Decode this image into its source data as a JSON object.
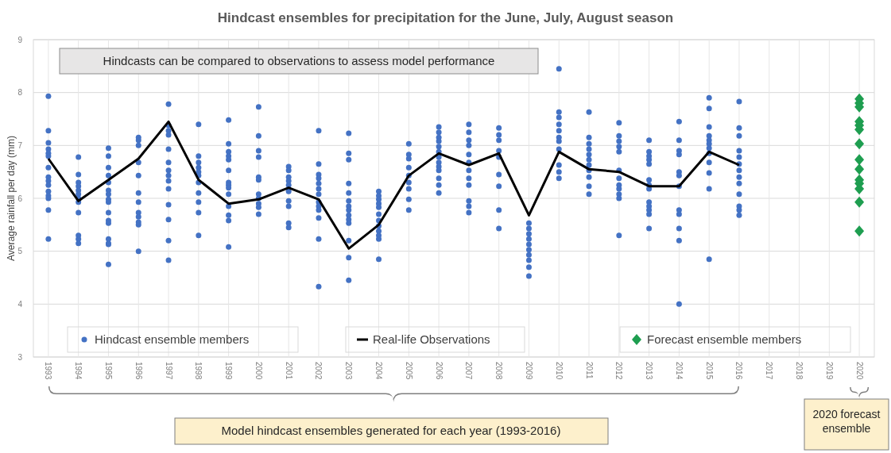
{
  "chart_data": {
    "type": "scatter",
    "title": "Hindcast ensembles for precipitation for the June, July, August season",
    "ylabel": "Average rainfall per day (mm)",
    "xlim": [
      1992.5,
      2020.5
    ],
    "xticks": [
      1993,
      1994,
      1995,
      1996,
      1997,
      1998,
      1999,
      2000,
      2001,
      2002,
      2003,
      2004,
      2005,
      2006,
      2007,
      2008,
      2009,
      2010,
      2011,
      2012,
      2013,
      2014,
      2015,
      2016,
      2017,
      2018,
      2019,
      2020
    ],
    "ylim": [
      3,
      9
    ],
    "yticks": [
      3,
      4,
      5,
      6,
      7,
      8,
      9
    ],
    "grid": true,
    "legend": "bottom",
    "annotations": [
      "Hindcasts can be compared to observations to assess model performance",
      "Model hindcast ensembles generated for each year (1993-2016)",
      "2020 forecast ensemble"
    ],
    "series": [
      {
        "name": "Hindcast ensemble members",
        "marker": "circle",
        "color": "#4472c4",
        "x": [
          1993,
          1993,
          1993,
          1993,
          1993,
          1993,
          1993,
          1993,
          1993,
          1993,
          1993,
          1993,
          1993,
          1993,
          1993,
          1994,
          1994,
          1994,
          1994,
          1994,
          1994,
          1994,
          1994,
          1994,
          1994,
          1994,
          1994,
          1995,
          1995,
          1995,
          1995,
          1995,
          1995,
          1995,
          1995,
          1995,
          1995,
          1995,
          1995,
          1995,
          1995,
          1995,
          1995,
          1996,
          1996,
          1996,
          1996,
          1996,
          1996,
          1996,
          1996,
          1996,
          1996,
          1996,
          1996,
          1997,
          1997,
          1997,
          1997,
          1997,
          1997,
          1997,
          1997,
          1997,
          1997,
          1997,
          1997,
          1997,
          1997,
          1998,
          1998,
          1998,
          1998,
          1998,
          1998,
          1998,
          1998,
          1998,
          1998,
          1998,
          1999,
          1999,
          1999,
          1999,
          1999,
          1999,
          1999,
          1999,
          1999,
          1999,
          1999,
          1999,
          1999,
          1999,
          2000,
          2000,
          2000,
          2000,
          2000,
          2000,
          2000,
          2000,
          2000,
          2000,
          2000,
          2001,
          2001,
          2001,
          2001,
          2001,
          2001,
          2001,
          2001,
          2001,
          2001,
          2002,
          2002,
          2002,
          2002,
          2002,
          2002,
          2002,
          2002,
          2002,
          2002,
          2002,
          2002,
          2002,
          2003,
          2003,
          2003,
          2003,
          2003,
          2003,
          2003,
          2003,
          2003,
          2003,
          2003,
          2003,
          2003,
          2003,
          2004,
          2004,
          2004,
          2004,
          2004,
          2004,
          2004,
          2004,
          2004,
          2004,
          2004,
          2004,
          2005,
          2005,
          2005,
          2005,
          2005,
          2005,
          2005,
          2005,
          2005,
          2006,
          2006,
          2006,
          2006,
          2006,
          2006,
          2006,
          2006,
          2006,
          2006,
          2006,
          2006,
          2006,
          2007,
          2007,
          2007,
          2007,
          2007,
          2007,
          2007,
          2007,
          2007,
          2007,
          2007,
          2007,
          2008,
          2008,
          2008,
          2008,
          2008,
          2008,
          2008,
          2008,
          2008,
          2009,
          2009,
          2009,
          2009,
          2009,
          2009,
          2009,
          2009,
          2009,
          2009,
          2010,
          2010,
          2010,
          2010,
          2010,
          2010,
          2010,
          2010,
          2010,
          2010,
          2010,
          2011,
          2011,
          2011,
          2011,
          2011,
          2011,
          2011,
          2011,
          2011,
          2011,
          2011,
          2012,
          2012,
          2012,
          2012,
          2012,
          2012,
          2012,
          2012,
          2012,
          2012,
          2012,
          2012,
          2013,
          2013,
          2013,
          2013,
          2013,
          2013,
          2013,
          2013,
          2013,
          2013,
          2013,
          2013,
          2013,
          2014,
          2014,
          2014,
          2014,
          2014,
          2014,
          2014,
          2014,
          2014,
          2014,
          2014,
          2014,
          2015,
          2015,
          2015,
          2015,
          2015,
          2015,
          2015,
          2015,
          2015,
          2015,
          2015,
          2015,
          2016,
          2016,
          2016,
          2016,
          2016,
          2016,
          2016,
          2016,
          2016,
          2016,
          2016,
          2016,
          2016
        ],
        "values": [
          7.93,
          7.28,
          7.05,
          6.93,
          6.85,
          6.8,
          6.58,
          6.4,
          6.33,
          6.25,
          6.13,
          6.05,
          6.0,
          5.78,
          5.23,
          6.78,
          6.45,
          6.3,
          6.23,
          6.15,
          6.08,
          6.0,
          5.93,
          5.73,
          5.3,
          5.23,
          5.15,
          6.95,
          6.8,
          6.58,
          6.43,
          6.3,
          6.15,
          6.08,
          5.98,
          5.93,
          5.73,
          5.58,
          5.53,
          5.23,
          5.15,
          5.13,
          4.75,
          7.15,
          7.1,
          7.0,
          6.68,
          6.43,
          6.1,
          5.93,
          5.73,
          5.65,
          5.55,
          5.5,
          5.0,
          7.78,
          7.38,
          7.28,
          7.2,
          6.93,
          6.68,
          6.53,
          6.43,
          6.33,
          6.18,
          5.88,
          5.6,
          5.2,
          4.83,
          7.4,
          6.8,
          6.68,
          6.58,
          6.5,
          6.43,
          6.3,
          6.1,
          5.93,
          5.73,
          5.3,
          7.48,
          7.03,
          6.88,
          6.8,
          6.73,
          6.53,
          6.3,
          6.25,
          6.2,
          6.08,
          5.85,
          5.68,
          5.58,
          5.08,
          7.73,
          7.18,
          6.9,
          6.78,
          6.4,
          6.35,
          6.08,
          6.0,
          5.9,
          5.83,
          5.7,
          6.6,
          6.53,
          6.4,
          6.33,
          6.25,
          6.13,
          5.95,
          5.85,
          5.53,
          5.45,
          7.28,
          6.65,
          6.45,
          6.38,
          6.28,
          6.18,
          6.08,
          5.93,
          5.85,
          5.78,
          5.63,
          5.23,
          4.33,
          7.23,
          6.85,
          6.73,
          6.28,
          6.1,
          5.95,
          5.85,
          5.78,
          5.68,
          5.6,
          5.53,
          5.2,
          4.88,
          4.45,
          6.13,
          6.05,
          5.98,
          5.9,
          5.83,
          5.7,
          5.58,
          5.48,
          5.38,
          5.3,
          5.23,
          4.85,
          7.03,
          6.83,
          6.75,
          6.58,
          6.43,
          6.3,
          6.18,
          5.98,
          5.78,
          7.35,
          7.25,
          7.15,
          7.08,
          6.98,
          6.88,
          6.78,
          6.68,
          6.6,
          6.53,
          6.38,
          6.25,
          6.1,
          7.4,
          7.25,
          7.1,
          7.0,
          6.83,
          6.68,
          6.53,
          6.38,
          6.25,
          5.95,
          5.85,
          5.73,
          7.33,
          7.2,
          7.1,
          6.9,
          6.78,
          6.45,
          6.23,
          5.78,
          5.43,
          5.53,
          5.43,
          5.33,
          5.23,
          5.13,
          5.03,
          4.93,
          4.83,
          4.7,
          4.53,
          8.45,
          7.63,
          7.53,
          7.4,
          7.28,
          7.15,
          7.08,
          6.93,
          6.63,
          6.5,
          6.38,
          7.63,
          7.15,
          7.03,
          6.93,
          6.83,
          6.73,
          6.63,
          6.53,
          6.4,
          6.23,
          6.08,
          7.43,
          7.18,
          7.08,
          6.98,
          6.88,
          6.53,
          6.38,
          6.25,
          6.18,
          6.08,
          6.0,
          5.3,
          7.1,
          6.88,
          6.8,
          6.73,
          6.65,
          6.35,
          6.25,
          6.18,
          5.93,
          5.85,
          5.78,
          5.7,
          5.43,
          7.45,
          7.1,
          6.9,
          6.83,
          6.5,
          6.43,
          6.23,
          5.78,
          5.7,
          5.43,
          5.2,
          4.0,
          7.9,
          7.7,
          7.35,
          7.18,
          7.1,
          7.03,
          6.95,
          6.85,
          6.68,
          6.48,
          6.18,
          4.85,
          7.83,
          7.33,
          7.18,
          6.9,
          6.78,
          6.65,
          6.53,
          6.4,
          6.28,
          6.08,
          5.85,
          5.78,
          5.68
        ]
      },
      {
        "name": "Real-life Observations",
        "type": "line",
        "marker": "none",
        "line_style": "solid",
        "color": "#000000",
        "x": [
          1993,
          1994,
          1995,
          1996,
          1997,
          1998,
          1999,
          2000,
          2001,
          2002,
          2003,
          2004,
          2005,
          2006,
          2007,
          2008,
          2009,
          2010,
          2011,
          2012,
          2013,
          2014,
          2015,
          2016
        ],
        "values": [
          6.75,
          5.95,
          6.35,
          6.75,
          7.45,
          6.35,
          5.9,
          5.98,
          6.2,
          5.98,
          5.05,
          5.5,
          6.43,
          6.85,
          6.63,
          6.85,
          5.68,
          6.88,
          6.55,
          6.5,
          6.23,
          6.23,
          6.88,
          6.63
        ]
      },
      {
        "name": "Forecast ensemble members",
        "marker": "diamond",
        "color": "#1e9e50",
        "x": [
          2020,
          2020,
          2020,
          2020,
          2020,
          2020,
          2020,
          2020,
          2020,
          2020,
          2020,
          2020,
          2020,
          2020
        ],
        "values": [
          7.88,
          7.8,
          7.73,
          7.45,
          7.38,
          7.3,
          7.03,
          6.73,
          6.55,
          6.35,
          6.28,
          6.18,
          5.93,
          5.38
        ]
      }
    ]
  }
}
